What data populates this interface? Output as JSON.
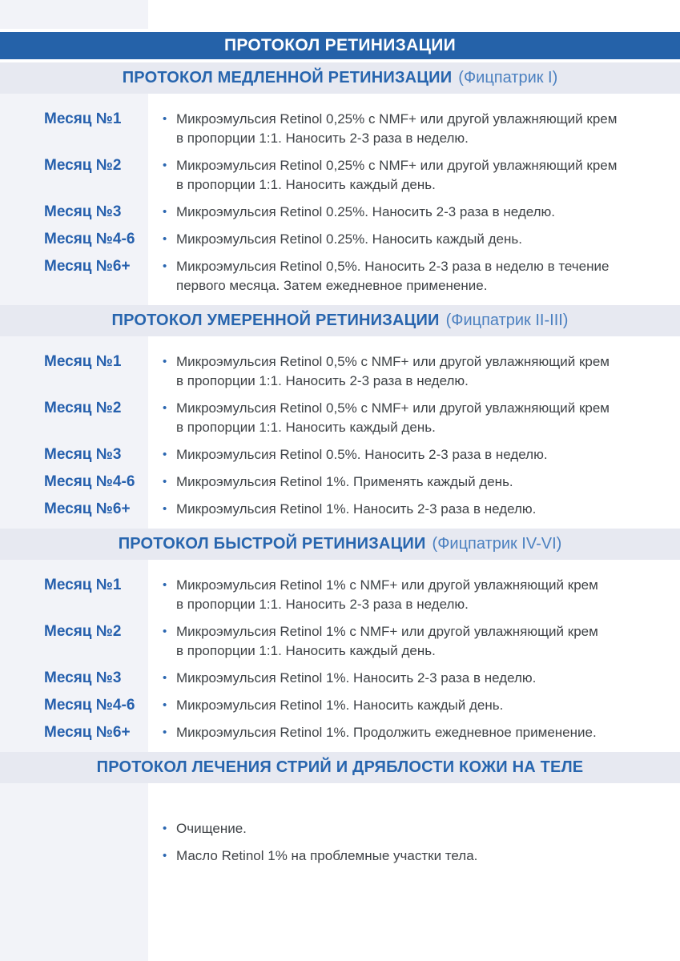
{
  "document": {
    "main_title": "ПРОТОКОЛ РЕТИНИЗАЦИИ",
    "bullet_glyph": "•",
    "sections": [
      {
        "title": "ПРОТОКОЛ МЕДЛЕННОЙ РЕТИНИЗАЦИИ",
        "subtitle": "(Фицпатрик I)",
        "rows": [
          {
            "label": "Месяц №1",
            "text": "Микроэмульсия Retinol 0,25% с NMF+ или другой увлажняющий крем\nв пропорции 1:1. Наносить 2-3 раза в неделю."
          },
          {
            "label": "Месяц №2",
            "text": "Микроэмульсия Retinol 0,25% с NMF+ или другой увлажняющий крем\nв пропорции 1:1. Наносить каждый день."
          },
          {
            "label": "Месяц №3",
            "text": "Микроэмульсия Retinol 0.25%. Наносить 2-3 раза в неделю."
          },
          {
            "label": "Месяц №4-6",
            "text": "Микроэмульсия Retinol 0.25%. Наносить каждый день."
          },
          {
            "label": "Месяц №6+",
            "text": "Микроэмульсия Retinol 0,5%. Наносить 2-3 раза в неделю в течение\nпервого месяца. Затем ежедневное применение."
          }
        ]
      },
      {
        "title": "ПРОТОКОЛ УМЕРЕННОЙ РЕТИНИЗАЦИИ",
        "subtitle": "(Фицпатрик II-III)",
        "rows": [
          {
            "label": "Месяц №1",
            "text": "Микроэмульсия Retinol 0,5% с NMF+ или другой увлажняющий крем\nв пропорции 1:1. Наносить 2-3 раза в неделю."
          },
          {
            "label": "Месяц №2",
            "text": "Микроэмульсия Retinol 0,5% с NMF+ или другой увлажняющий крем\nв пропорции 1:1. Наносить каждый день."
          },
          {
            "label": "Месяц №3",
            "text": "Микроэмульсия Retinol 0.5%. Наносить 2-3 раза в неделю."
          },
          {
            "label": "Месяц №4-6",
            "text": "Микроэмульсия Retinol 1%. Применять каждый день."
          },
          {
            "label": "Месяц №6+",
            "text": "Микроэмульсия Retinol 1%. Наносить 2-3 раза в неделю."
          }
        ]
      },
      {
        "title": "ПРОТОКОЛ БЫСТРОЙ РЕТИНИЗАЦИИ",
        "subtitle": "(Фицпатрик IV-VI)",
        "rows": [
          {
            "label": "Месяц №1",
            "text": "Микроэмульсия Retinol 1% с NMF+ или другой увлажняющий крем\nв пропорции 1:1. Наносить 2-3 раза в неделю."
          },
          {
            "label": "Месяц №2",
            "text": "Микроэмульсия Retinol 1% с NMF+ или другой увлажняющий крем\nв пропорции 1:1. Наносить каждый день."
          },
          {
            "label": "Месяц №3",
            "text": "Микроэмульсия Retinol 1%. Наносить 2-3 раза в неделю."
          },
          {
            "label": "Месяц №4-6",
            "text": "Микроэмульсия Retinol 1%. Наносить каждый день."
          },
          {
            "label": "Месяц №6+",
            "text": "Микроэмульсия Retinol 1%. Продолжить ежедневное применение."
          }
        ]
      },
      {
        "title": "ПРОТОКОЛ ЛЕЧЕНИЯ СТРИЙ И ДРЯБЛОСТИ КОЖИ НА ТЕЛЕ",
        "subtitle": "",
        "rows": [
          {
            "label": "",
            "text": "Очищение."
          },
          {
            "label": "",
            "text": "Масло Retinol 1% на проблемные участки тела."
          }
        ]
      }
    ],
    "colors": {
      "main_title_bar": "#2562a9",
      "main_title_text": "#ffffff",
      "section_bar": "#e7e9f1",
      "left_strip": "#f2f3f8",
      "section_title_blue": "#2765ae",
      "section_subtitle_blue": "#4b80c0",
      "month_label_blue": "#2660ad",
      "body_text": "#3f4347",
      "bullet_blue": "#2a66b0"
    }
  }
}
